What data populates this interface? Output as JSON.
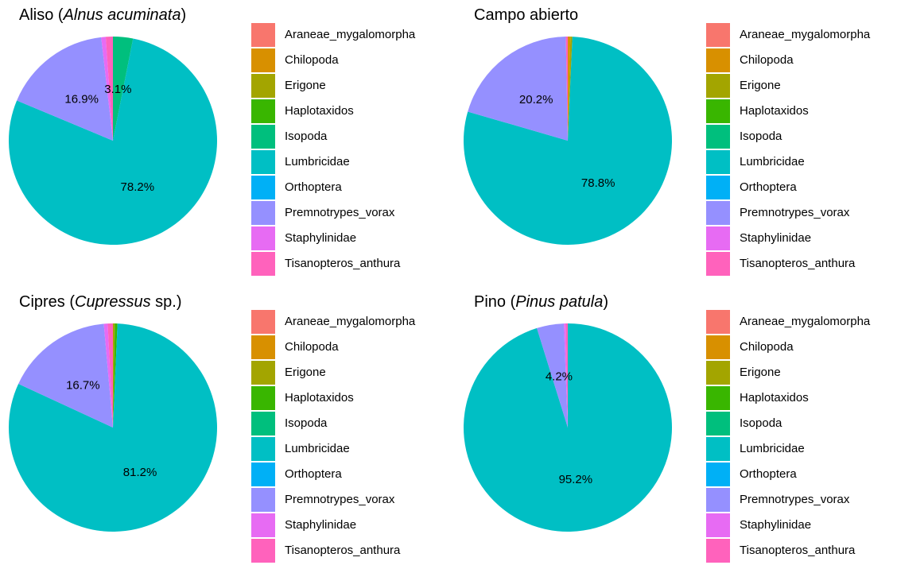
{
  "chart_data": [
    {
      "type": "pie",
      "title": {
        "prefix": "Aliso (",
        "italic": "Alnus acuminata",
        "suffix": ")"
      },
      "categories": [
        "Araneae_mygalomorpha",
        "Chilopoda",
        "Erigone",
        "Haplotaxidos",
        "Isopoda",
        "Lumbricidae",
        "Orthoptera",
        "Premnotrypes_vorax",
        "Staphylinidae",
        "Tisanopteros_anthura"
      ],
      "values": [
        0.0,
        0.0,
        0.0,
        0.0,
        3.1,
        78.2,
        0.0,
        16.9,
        0.7,
        1.1
      ],
      "slice_labels": [
        "",
        "",
        "",
        "",
        "3.1%",
        "78.2%",
        "",
        "16.9%",
        "",
        ""
      ],
      "legend_position": "right"
    },
    {
      "type": "pie",
      "title": {
        "prefix": "Campo abierto",
        "italic": "",
        "suffix": ""
      },
      "categories": [
        "Araneae_mygalomorpha",
        "Chilopoda",
        "Erigone",
        "Haplotaxidos",
        "Isopoda",
        "Lumbricidae",
        "Orthoptera",
        "Premnotrypes_vorax",
        "Staphylinidae",
        "Tisanopteros_anthura"
      ],
      "values": [
        0.0,
        0.4,
        0.3,
        0.0,
        0.0,
        78.8,
        0.0,
        20.2,
        0.0,
        0.3
      ],
      "slice_labels": [
        "",
        "",
        "",
        "",
        "",
        "78.8%",
        "",
        "20.2%",
        "",
        ""
      ],
      "legend_position": "right"
    },
    {
      "type": "pie",
      "title": {
        "prefix": "Cipres (",
        "italic": "Cupressus",
        "suffix": " sp.)"
      },
      "categories": [
        "Araneae_mygalomorpha",
        "Chilopoda",
        "Erigone",
        "Haplotaxidos",
        "Isopoda",
        "Lumbricidae",
        "Orthoptera",
        "Premnotrypes_vorax",
        "Staphylinidae",
        "Tisanopteros_anthura"
      ],
      "values": [
        0.0,
        0.0,
        0.3,
        0.4,
        0.0,
        81.2,
        0.0,
        16.7,
        0.6,
        0.8
      ],
      "slice_labels": [
        "",
        "",
        "",
        "",
        "",
        "81.2%",
        "",
        "16.7%",
        "",
        ""
      ],
      "legend_position": "right"
    },
    {
      "type": "pie",
      "title": {
        "prefix": "Pino (",
        "italic": "Pinus patula",
        "suffix": ")"
      },
      "categories": [
        "Araneae_mygalomorpha",
        "Chilopoda",
        "Erigone",
        "Haplotaxidos",
        "Isopoda",
        "Lumbricidae",
        "Orthoptera",
        "Premnotrypes_vorax",
        "Staphylinidae",
        "Tisanopteros_anthura"
      ],
      "values": [
        0.0,
        0.0,
        0.0,
        0.0,
        0.0,
        95.2,
        0.0,
        4.2,
        0.3,
        0.3
      ],
      "slice_labels": [
        "",
        "",
        "",
        "",
        "",
        "95.2%",
        "",
        "4.2%",
        "",
        ""
      ],
      "legend_position": "right"
    }
  ],
  "legend": {
    "items": [
      {
        "label": "Araneae_mygalomorpha",
        "color": "#F8766D"
      },
      {
        "label": "Chilopoda",
        "color": "#D89000"
      },
      {
        "label": "Erigone",
        "color": "#A3A500"
      },
      {
        "label": "Haplotaxidos",
        "color": "#39B600"
      },
      {
        "label": "Isopoda",
        "color": "#00BF7D"
      },
      {
        "label": "Lumbricidae",
        "color": "#00BFC4"
      },
      {
        "label": "Orthoptera",
        "color": "#00B0F6"
      },
      {
        "label": "Premnotrypes_vorax",
        "color": "#9590FF"
      },
      {
        "label": "Staphylinidae",
        "color": "#E76BF3"
      },
      {
        "label": "Tisanopteros_anthura",
        "color": "#FF62BC"
      }
    ]
  }
}
